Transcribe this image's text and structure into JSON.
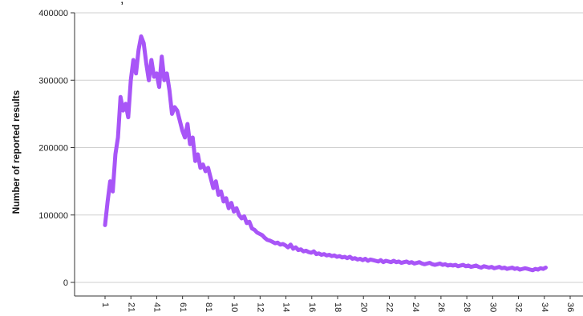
{
  "header_fragment": ",",
  "chart_data": {
    "type": "line",
    "ylabel": "Number of reported results",
    "xlabel": "",
    "ylim": [
      0,
      400000
    ],
    "yticks": [
      0,
      100000,
      200000,
      300000,
      400000
    ],
    "ytick_labels": [
      "0",
      "100000",
      "200000",
      "300000",
      "400000"
    ],
    "xtick_labels": [
      "1",
      "21",
      "41",
      "61",
      "81",
      "10",
      "12",
      "14",
      "16",
      "18",
      "20",
      "22",
      "24",
      "26",
      "28",
      "30",
      "32",
      "34",
      "36"
    ],
    "grid": "horizontal",
    "colors": {
      "series": "#a855f7",
      "grid": "#cfcfcf",
      "axis": "#333333"
    },
    "series": [
      {
        "x": [
          1,
          3,
          5,
          7,
          9,
          11,
          13,
          15,
          17,
          19,
          21,
          23,
          25,
          27,
          29,
          31,
          33,
          35,
          37,
          39,
          41,
          43,
          45,
          47,
          49,
          51,
          53,
          55,
          57,
          59,
          61,
          63,
          65,
          67,
          69,
          71,
          73,
          75,
          77,
          79,
          81,
          83,
          85,
          87,
          89,
          91,
          93,
          95,
          97,
          99,
          101,
          103,
          105,
          107,
          109,
          111,
          113,
          115,
          117,
          119,
          121,
          123,
          125,
          127,
          129,
          131,
          133,
          135,
          137,
          139,
          141,
          143,
          145,
          147,
          149,
          151,
          153,
          155,
          157,
          159,
          161,
          163,
          165,
          167,
          169,
          171,
          173,
          175,
          177,
          179,
          181,
          183,
          185,
          187,
          189,
          191,
          193,
          195,
          197,
          199,
          201,
          203,
          205,
          207,
          209,
          211,
          213,
          215,
          217,
          219,
          221,
          223,
          225,
          227,
          229,
          231,
          233,
          235,
          237,
          239,
          241,
          243,
          245,
          247,
          249,
          251,
          253,
          255,
          257,
          259,
          261,
          263,
          265,
          267,
          269,
          271,
          273,
          275,
          277,
          279,
          281,
          283,
          285,
          287,
          289,
          291,
          293,
          295,
          297,
          299,
          301,
          303,
          305,
          307,
          309,
          311,
          313,
          315,
          317,
          319,
          321,
          323,
          325,
          327,
          329,
          331,
          333,
          335,
          337,
          339,
          341,
          343
        ],
        "values": [
          85000,
          120000,
          150000,
          135000,
          190000,
          215000,
          275000,
          255000,
          265000,
          245000,
          300000,
          330000,
          310000,
          345000,
          365000,
          355000,
          325000,
          300000,
          330000,
          305000,
          310000,
          290000,
          335000,
          300000,
          310000,
          285000,
          250000,
          260000,
          255000,
          240000,
          225000,
          215000,
          235000,
          205000,
          215000,
          180000,
          190000,
          170000,
          175000,
          165000,
          170000,
          155000,
          140000,
          150000,
          130000,
          135000,
          120000,
          125000,
          110000,
          118000,
          105000,
          110000,
          100000,
          95000,
          98000,
          88000,
          90000,
          80000,
          78000,
          74000,
          72000,
          70000,
          66000,
          63000,
          62000,
          60000,
          58000,
          59000,
          56000,
          57000,
          55000,
          52000,
          56000,
          50000,
          52000,
          48000,
          49000,
          46000,
          47000,
          45000,
          44000,
          46000,
          42000,
          43000,
          41000,
          42000,
          40000,
          41000,
          39000,
          40000,
          38000,
          39000,
          37000,
          38000,
          36000,
          38000,
          35000,
          36000,
          34000,
          35000,
          33000,
          35000,
          32000,
          34000,
          33000,
          32000,
          31000,
          33000,
          30000,
          32000,
          31000,
          30000,
          32000,
          30000,
          31000,
          29000,
          30000,
          31000,
          29000,
          30000,
          28000,
          29000,
          30000,
          28000,
          27000,
          28000,
          29000,
          27000,
          26000,
          27000,
          28000,
          26000,
          27000,
          25000,
          26000,
          25000,
          26000,
          24000,
          25000,
          26000,
          24000,
          25000,
          23000,
          24000,
          25000,
          23000,
          22000,
          24000,
          23000,
          22000,
          23000,
          21000,
          22000,
          23000,
          21000,
          22000,
          20000,
          21000,
          22000,
          20000,
          21000,
          19000,
          20000,
          21000,
          20000,
          19000,
          18000,
          20000,
          19000,
          21000,
          20000,
          22000
        ]
      }
    ]
  }
}
